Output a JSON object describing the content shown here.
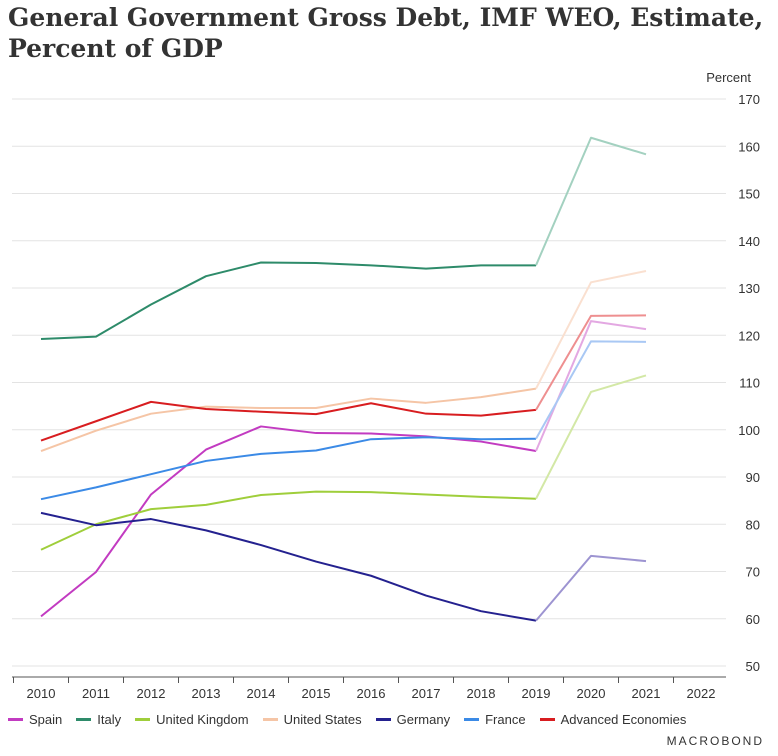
{
  "page": {
    "title_line1": "General Government Gross Debt, IMF WEO, Estimate,",
    "title_line2": "Percent of GDP",
    "brand": "MACROBOND"
  },
  "chart_data": {
    "type": "line",
    "ylabel": "Percent",
    "ylim": [
      45,
      172
    ],
    "yticks": [
      50,
      60,
      70,
      80,
      90,
      100,
      110,
      120,
      130,
      140,
      150,
      160,
      170
    ],
    "x": [
      "2010",
      "2011",
      "2012",
      "2013",
      "2014",
      "2015",
      "2016",
      "2017",
      "2018",
      "2019",
      "2020",
      "2021",
      "2022"
    ],
    "estimate_start": "2019",
    "grid": true,
    "legend_position": "bottom",
    "series": [
      {
        "name": "Spain",
        "color": "#c23bc1",
        "est_color": "#e3a8e2",
        "values": [
          60.5,
          69.9,
          86.3,
          95.8,
          100.7,
          99.3,
          99.2,
          98.6,
          97.5,
          95.5,
          123.0,
          121.3,
          null
        ]
      },
      {
        "name": "Italy",
        "color": "#2e8b6a",
        "est_color": "#a3d1c0",
        "values": [
          119.2,
          119.7,
          126.5,
          132.5,
          135.4,
          135.3,
          134.8,
          134.1,
          134.8,
          134.8,
          161.8,
          158.3,
          null
        ]
      },
      {
        "name": "United Kingdom",
        "color": "#9fce3b",
        "est_color": "#d3e8a6",
        "values": [
          74.6,
          80.0,
          83.2,
          84.1,
          86.2,
          86.9,
          86.8,
          86.3,
          85.8,
          85.4,
          108.0,
          111.5,
          null
        ]
      },
      {
        "name": "United States",
        "color": "#f5c5a6",
        "est_color": "#fae0d0",
        "values": [
          95.5,
          99.8,
          103.4,
          104.9,
          104.6,
          104.6,
          106.6,
          105.7,
          106.9,
          108.7,
          131.2,
          133.6,
          null
        ]
      },
      {
        "name": "Germany",
        "color": "#24218f",
        "est_color": "#9d94d1",
        "values": [
          82.4,
          79.8,
          81.1,
          78.7,
          75.6,
          72.1,
          69.1,
          64.9,
          61.6,
          59.6,
          73.3,
          72.2,
          null
        ]
      },
      {
        "name": "France",
        "color": "#3b8ae6",
        "est_color": "#a9c8f4",
        "values": [
          85.3,
          87.8,
          90.6,
          93.4,
          94.9,
          95.6,
          98.0,
          98.4,
          98.0,
          98.1,
          118.7,
          118.6,
          null
        ]
      },
      {
        "name": "Advanced Economies",
        "color": "#d81d20",
        "est_color": "#ee8f90",
        "values": [
          97.7,
          101.8,
          105.9,
          104.4,
          103.8,
          103.3,
          105.6,
          103.4,
          103.0,
          104.2,
          124.1,
          124.2,
          null
        ]
      }
    ]
  }
}
